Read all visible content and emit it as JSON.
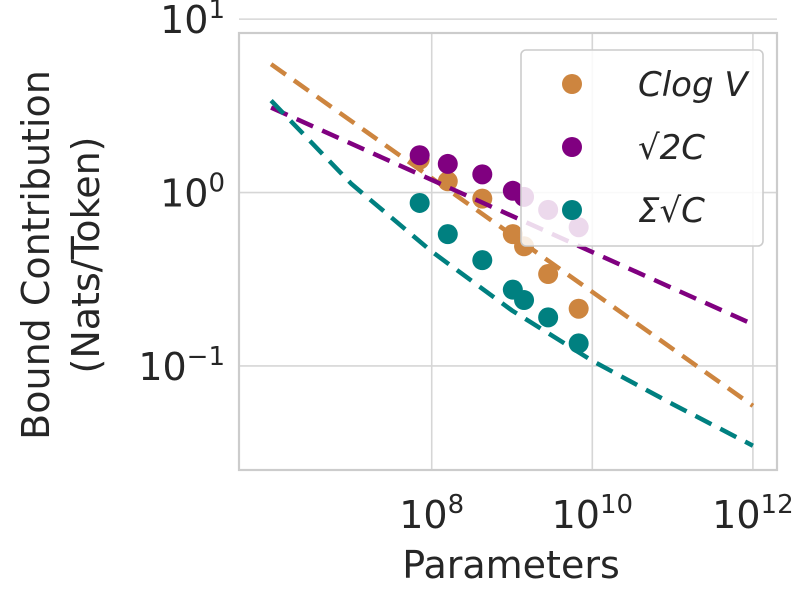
{
  "chart_data": {
    "type": "scatter",
    "title": "",
    "xlabel": "Parameters",
    "ylabel": "Bound Contribution",
    "ylabel_line2": "(Nats/Token)",
    "xscale": "log",
    "yscale": "log",
    "xlim_log10": [
      5.6,
      12.3
    ],
    "ylim_log10": [
      -1.6,
      0.92
    ],
    "grid": true,
    "legend_position": "top-right",
    "x_ticks": [
      {
        "base": "10",
        "exp": "8",
        "value_log10": 8
      },
      {
        "base": "10",
        "exp": "10",
        "value_log10": 10
      },
      {
        "base": "10",
        "exp": "12",
        "value_log10": 12
      }
    ],
    "y_ticks": [
      {
        "base": "10",
        "exp": "1",
        "value_log10": 1
      },
      {
        "base": "10",
        "exp": "0",
        "value_log10": 0
      },
      {
        "base": "10",
        "exp": "−1",
        "value_log10": -1
      }
    ],
    "series": [
      {
        "name": "Clog V",
        "legend_label": "Clog V",
        "color": "#cd853f",
        "points_log10": [
          [
            7.85,
            0.19
          ],
          [
            8.2,
            0.065
          ],
          [
            8.63,
            -0.035
          ],
          [
            9.01,
            -0.24
          ],
          [
            9.15,
            -0.31
          ],
          [
            9.45,
            -0.47
          ],
          [
            9.83,
            -0.67
          ]
        ],
        "fit_log10": [
          [
            6.0,
            0.74
          ],
          [
            12.0,
            -1.23
          ]
        ]
      },
      {
        "name": "sqrt(2C)",
        "legend_label": "√2C",
        "color": "#800080",
        "points_log10": [
          [
            7.85,
            0.215
          ],
          [
            8.2,
            0.165
          ],
          [
            8.63,
            0.105
          ],
          [
            9.01,
            0.01
          ],
          [
            9.15,
            -0.025
          ],
          [
            9.45,
            -0.1
          ],
          [
            9.83,
            -0.2
          ]
        ],
        "fit_log10": [
          [
            6.0,
            0.49
          ],
          [
            12.0,
            -0.76
          ]
        ]
      },
      {
        "name": "Sigma sqrt(C)",
        "legend_label": "Σ√C",
        "color": "#008080",
        "points_log10": [
          [
            7.85,
            -0.06
          ],
          [
            8.2,
            -0.24
          ],
          [
            8.63,
            -0.39
          ],
          [
            9.01,
            -0.56
          ],
          [
            9.15,
            -0.62
          ],
          [
            9.45,
            -0.72
          ],
          [
            9.83,
            -0.87
          ]
        ],
        "fit_log10": [
          [
            6.0,
            0.53
          ],
          [
            7.0,
            0.05
          ],
          [
            8.0,
            -0.34
          ],
          [
            9.0,
            -0.68
          ],
          [
            10.0,
            -0.97
          ],
          [
            11.0,
            -1.22
          ],
          [
            12.0,
            -1.46
          ]
        ]
      }
    ]
  }
}
